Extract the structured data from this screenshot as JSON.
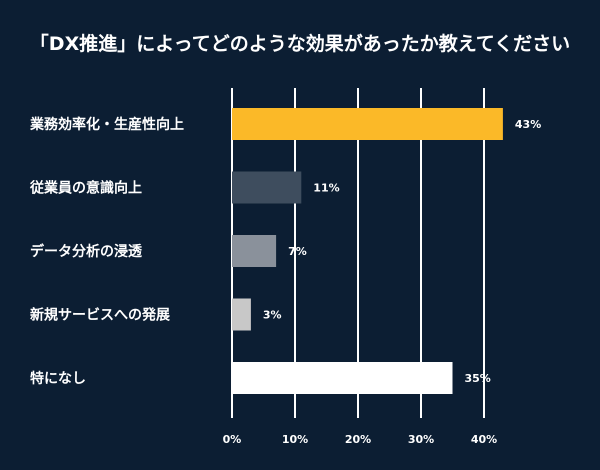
{
  "chart_data": {
    "type": "bar",
    "orientation": "horizontal",
    "title": "「DX推進」によってどのような効果があったか教えてください",
    "categories": [
      "業務効率化・生産性向上",
      "従業員の意識向上",
      "データ分析の浸透",
      "新規サービスへの発展",
      "特になし"
    ],
    "values": [
      43,
      11,
      7,
      3,
      35
    ],
    "value_labels": [
      "43%",
      "11%",
      "7%",
      "3%",
      "35%"
    ],
    "bar_colors": [
      "#fbb928",
      "#3e4d5e",
      "#8a919b",
      "#c8c8c8",
      "#ffffff"
    ],
    "xlim": [
      0,
      40
    ],
    "ticks": [
      0,
      10,
      20,
      30,
      40
    ],
    "tick_labels": [
      "0%",
      "10%",
      "20%",
      "30%",
      "40%"
    ],
    "grid": true,
    "xlabel": "",
    "ylabel": ""
  },
  "colors": {
    "background": "#0c1e33",
    "text": "#ffffff",
    "grid": "#ffffff"
  }
}
